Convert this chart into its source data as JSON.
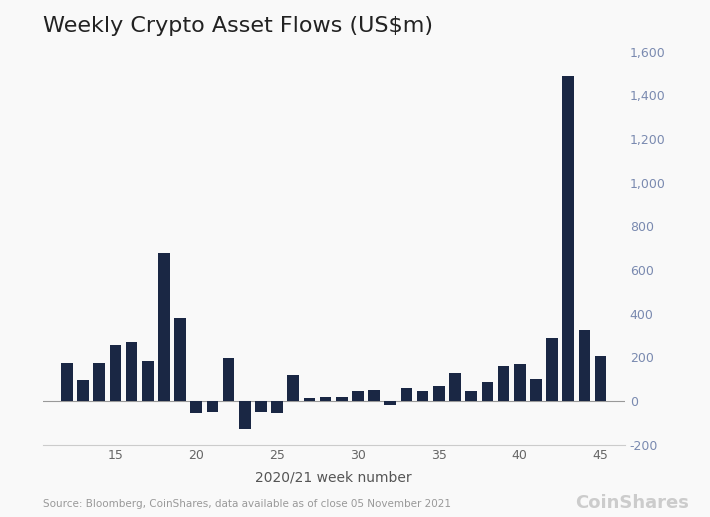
{
  "title": "Weekly Crypto Asset Flows (US$m)",
  "xlabel": "2020/21 week number",
  "bar_color": "#1a2744",
  "background_color": "#f9f9f9",
  "source_text": "Source: Bloomberg, CoinShares, data available as of close 05 November 2021",
  "weeks": [
    12,
    13,
    14,
    15,
    16,
    17,
    18,
    19,
    20,
    21,
    22,
    23,
    24,
    25,
    26,
    27,
    28,
    29,
    30,
    31,
    32,
    33,
    34,
    35,
    36,
    37,
    38,
    39,
    40,
    41,
    42,
    43,
    44,
    45
  ],
  "values": [
    175,
    95,
    175,
    255,
    270,
    185,
    680,
    380,
    -55,
    -50,
    195,
    -130,
    -50,
    -55,
    120,
    15,
    20,
    20,
    45,
    50,
    -20,
    60,
    45,
    70,
    130,
    45,
    85,
    160,
    170,
    100,
    290,
    1490,
    325,
    205
  ],
  "ylim": [
    -200,
    1600
  ],
  "yticks": [
    -200,
    0,
    200,
    400,
    600,
    800,
    1000,
    1200,
    1400,
    1600
  ],
  "xticks": [
    15,
    20,
    25,
    30,
    35,
    40,
    45
  ],
  "title_fontsize": 16,
  "axis_fontsize": 10,
  "tick_fontsize": 9,
  "source_fontsize": 7.5,
  "ytick_color": "#7a8ab0",
  "xtick_color": "#666666",
  "xlabel_color": "#555555",
  "title_color": "#222222",
  "grid_color": "#e8e8e8",
  "zero_line_color": "#999999"
}
